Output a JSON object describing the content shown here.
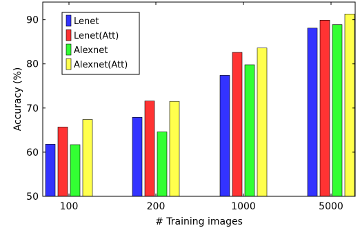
{
  "chart_data": {
    "type": "bar",
    "categories": [
      "100",
      "200",
      "1000",
      "5000"
    ],
    "series": [
      {
        "name": "Lenet",
        "color": "#3333ff",
        "values": [
          61.8,
          67.9,
          77.4,
          88.1
        ]
      },
      {
        "name": "Lenet(Att)",
        "color": "#ff3333",
        "values": [
          65.7,
          71.6,
          82.6,
          89.9
        ]
      },
      {
        "name": "Alexnet",
        "color": "#33ff33",
        "values": [
          61.7,
          64.6,
          79.8,
          88.9
        ]
      },
      {
        "name": "Alexnet(Att)",
        "color": "#ffff4d",
        "values": [
          67.4,
          71.5,
          83.6,
          91.3
        ]
      }
    ],
    "xlabel": "# Training images",
    "ylabel": "Accuracy (%)",
    "ylim": [
      50,
      94
    ],
    "yticks": [
      50,
      60,
      70,
      80,
      90
    ],
    "grid": false,
    "legend": "top-left"
  }
}
